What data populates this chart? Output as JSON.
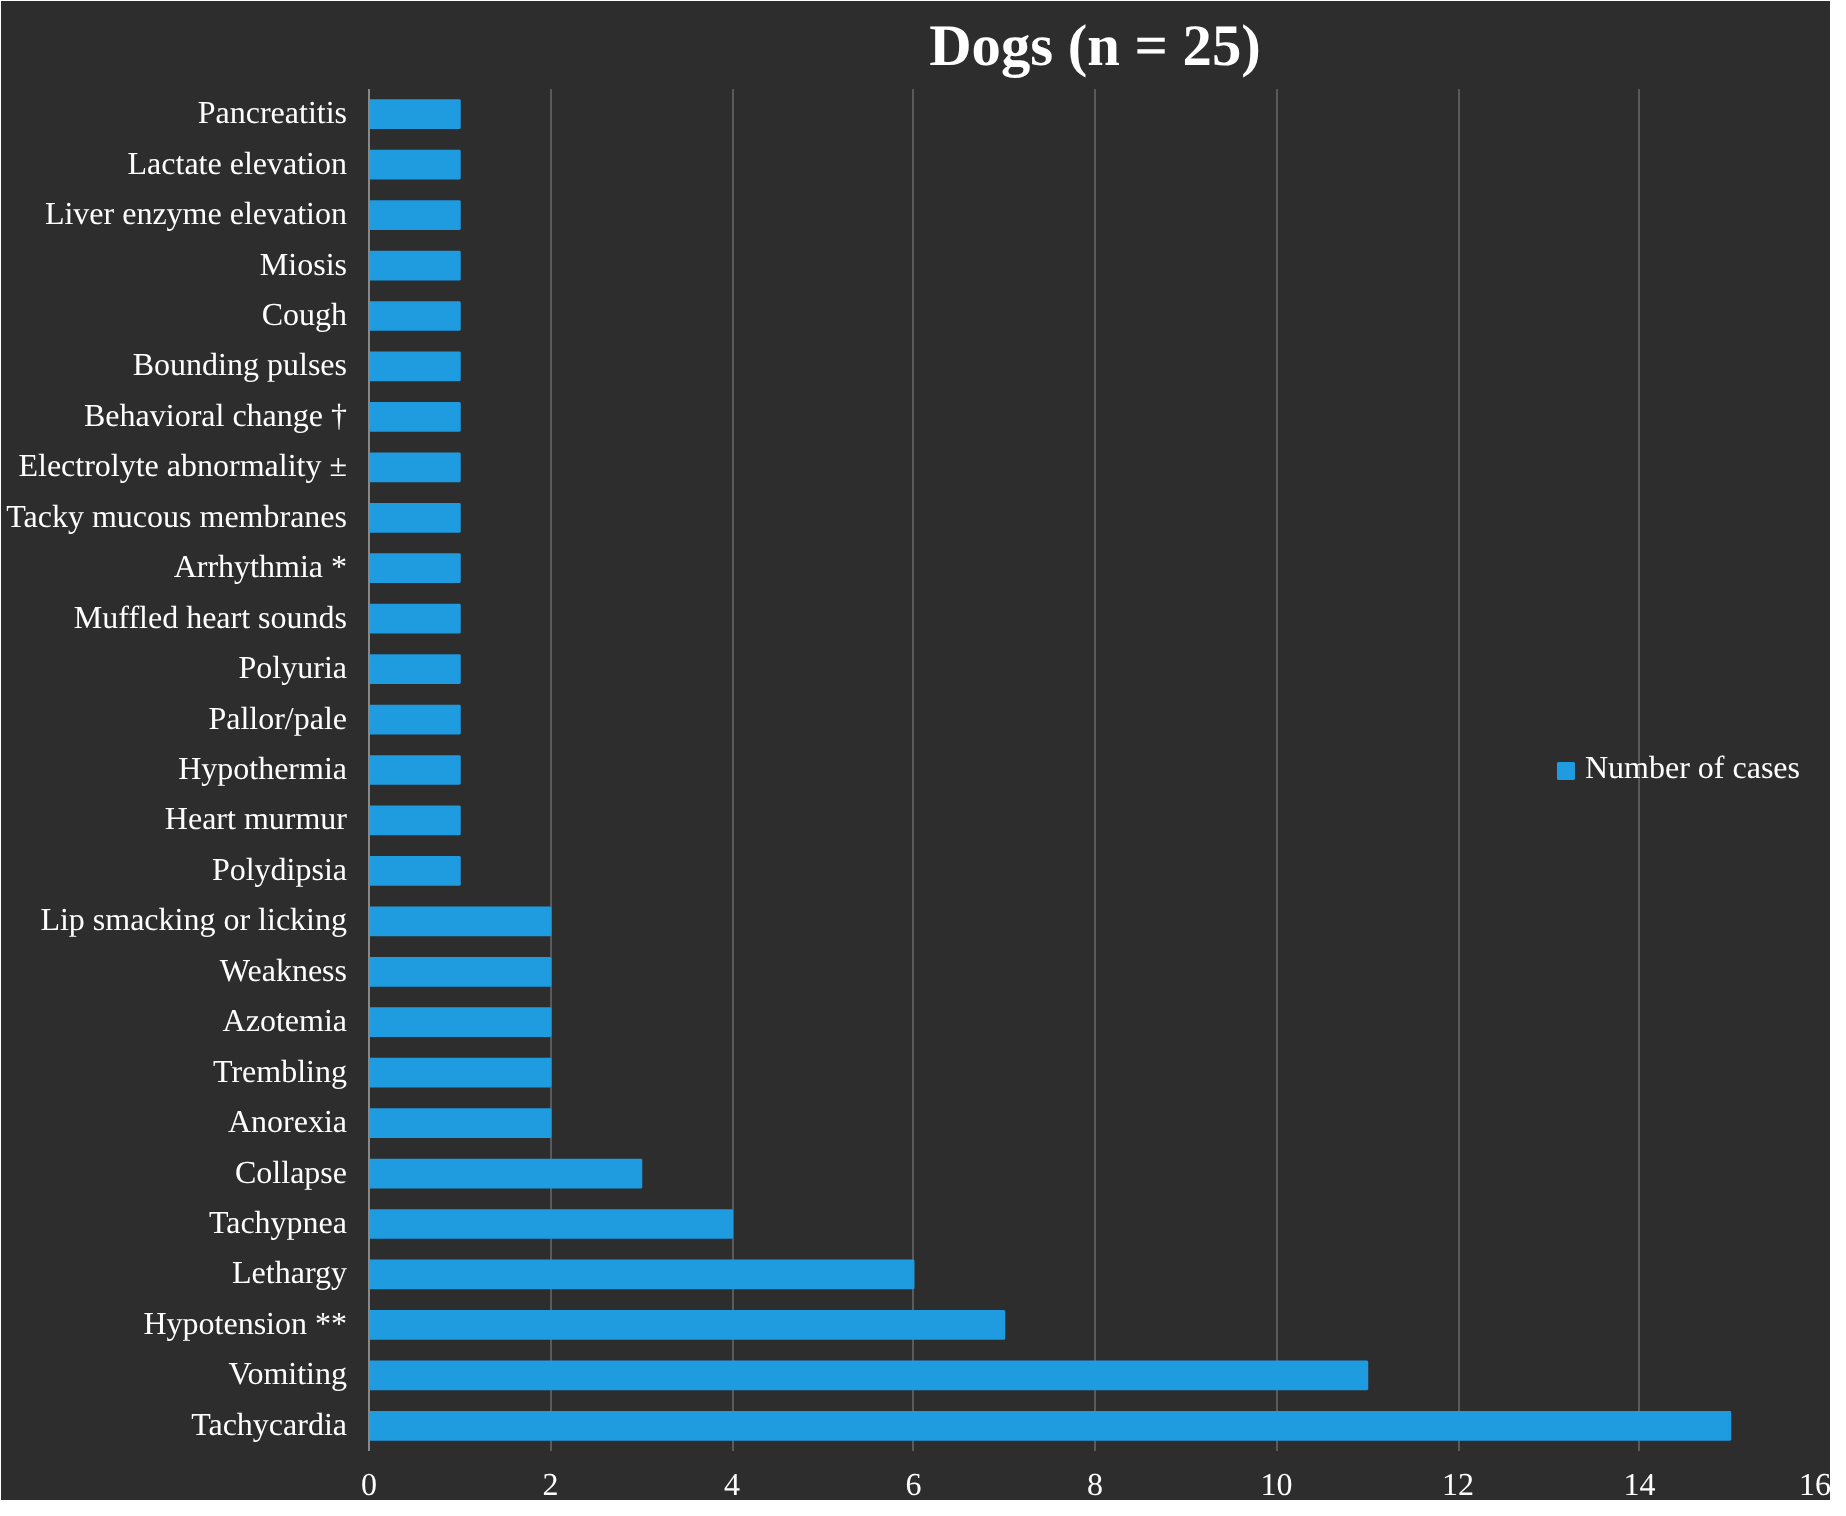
{
  "chart_data": {
    "type": "bar",
    "orientation": "horizontal",
    "title": "Dogs (n = 25)",
    "categories": [
      "Pancreatitis",
      "Lactate elevation",
      "Liver enzyme elevation",
      "Miosis",
      "Cough",
      "Bounding pulses",
      "Behavioral change †",
      "Electrolyte abnormality ±",
      "Tacky mucous membranes",
      "Arrhythmia *",
      "Muffled heart sounds",
      "Polyuria",
      "Pallor/pale",
      "Hypothermia",
      "Heart murmur",
      "Polydipsia",
      "Lip smacking or licking",
      "Weakness",
      "Azotemia",
      "Trembling",
      "Anorexia",
      "Collapse",
      "Tachypnea",
      "Lethargy",
      "Hypotension **",
      "Vomiting",
      "Tachycardia"
    ],
    "series": [
      {
        "name": "Number of cases",
        "color": "#1f9be0",
        "values": [
          1,
          1,
          1,
          1,
          1,
          1,
          1,
          1,
          1,
          1,
          1,
          1,
          1,
          1,
          1,
          1,
          2,
          2,
          2,
          2,
          2,
          3,
          4,
          6,
          7,
          11,
          15
        ]
      }
    ],
    "xlim": [
      0,
      16
    ],
    "xticks": [
      0,
      2,
      4,
      6,
      8,
      10,
      12,
      14,
      16
    ],
    "grid": "x",
    "legend": "right"
  }
}
